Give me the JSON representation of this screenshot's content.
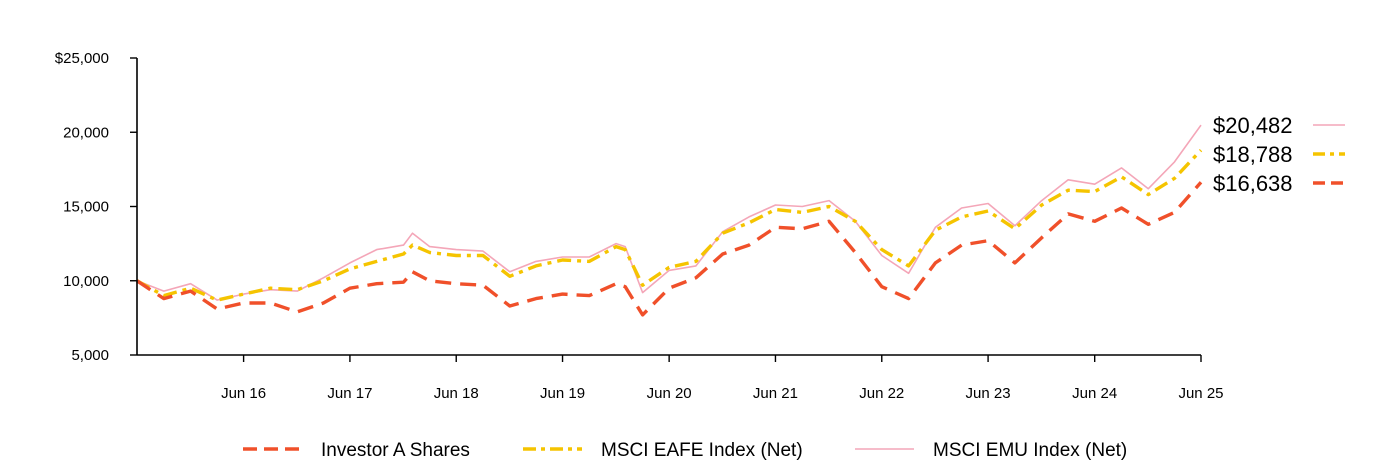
{
  "chart_data": {
    "type": "line",
    "title": "",
    "xlabel": "",
    "ylabel": "",
    "ylim": [
      5000,
      25000
    ],
    "xlim": [
      "2015-06-30",
      "2025-06-30"
    ],
    "grid": false,
    "legend_position": "bottom",
    "y_ticks": [
      {
        "value": 5000,
        "label": "5,000"
      },
      {
        "value": 10000,
        "label": "10,000"
      },
      {
        "value": 15000,
        "label": "15,000"
      },
      {
        "value": 20000,
        "label": "20,000"
      },
      {
        "value": 25000,
        "label": "$25,000"
      }
    ],
    "x_ticks": [
      {
        "value": "2016-06-30",
        "label": "Jun 16"
      },
      {
        "value": "2017-06-30",
        "label": "Jun 17"
      },
      {
        "value": "2018-06-30",
        "label": "Jun 18"
      },
      {
        "value": "2019-06-30",
        "label": "Jun 19"
      },
      {
        "value": "2020-06-30",
        "label": "Jun 20"
      },
      {
        "value": "2021-06-30",
        "label": "Jun 21"
      },
      {
        "value": "2022-06-30",
        "label": "Jun 22"
      },
      {
        "value": "2023-06-30",
        "label": "Jun 23"
      },
      {
        "value": "2024-06-30",
        "label": "Jun 24"
      },
      {
        "value": "2025-06-30",
        "label": "Jun 25"
      }
    ],
    "series": [
      {
        "name": "MSCI EMU Index (Net)",
        "color": "#f4a6b8",
        "line_style": "solid",
        "end_label": "$20,482",
        "points": [
          [
            "2015-06-30",
            10000
          ],
          [
            "2015-09-30",
            9300
          ],
          [
            "2015-12-31",
            9800
          ],
          [
            "2016-03-31",
            8700
          ],
          [
            "2016-06-30",
            9100
          ],
          [
            "2016-09-30",
            9400
          ],
          [
            "2016-12-31",
            9300
          ],
          [
            "2017-03-31",
            10200
          ],
          [
            "2017-06-30",
            11200
          ],
          [
            "2017-09-30",
            12100
          ],
          [
            "2017-12-31",
            12400
          ],
          [
            "2018-01-31",
            13200
          ],
          [
            "2018-03-31",
            12300
          ],
          [
            "2018-06-30",
            12100
          ],
          [
            "2018-09-30",
            12000
          ],
          [
            "2018-12-31",
            10600
          ],
          [
            "2019-03-31",
            11300
          ],
          [
            "2019-06-30",
            11600
          ],
          [
            "2019-09-30",
            11600
          ],
          [
            "2019-12-31",
            12500
          ],
          [
            "2020-01-31",
            12300
          ],
          [
            "2020-03-31",
            9200
          ],
          [
            "2020-06-30",
            10700
          ],
          [
            "2020-09-30",
            11000
          ],
          [
            "2020-12-31",
            13300
          ],
          [
            "2021-03-31",
            14300
          ],
          [
            "2021-06-30",
            15100
          ],
          [
            "2021-09-30",
            15000
          ],
          [
            "2021-12-31",
            15400
          ],
          [
            "2022-03-31",
            14000
          ],
          [
            "2022-06-30",
            11700
          ],
          [
            "2022-09-30",
            10500
          ],
          [
            "2022-12-31",
            13600
          ],
          [
            "2023-03-31",
            14900
          ],
          [
            "2023-06-30",
            15200
          ],
          [
            "2023-09-30",
            13700
          ],
          [
            "2023-12-31",
            15400
          ],
          [
            "2024-03-31",
            16800
          ],
          [
            "2024-06-30",
            16500
          ],
          [
            "2024-09-30",
            17600
          ],
          [
            "2024-12-31",
            16200
          ],
          [
            "2025-03-31",
            18000
          ],
          [
            "2025-06-30",
            20482
          ]
        ]
      },
      {
        "name": "MSCI EAFE Index (Net)",
        "color": "#f5c400",
        "line_style": "dash-dot",
        "end_label": "$18,788",
        "points": [
          [
            "2015-06-30",
            10000
          ],
          [
            "2015-09-30",
            9000
          ],
          [
            "2015-12-31",
            9500
          ],
          [
            "2016-03-31",
            8700
          ],
          [
            "2016-06-30",
            9100
          ],
          [
            "2016-09-30",
            9500
          ],
          [
            "2016-12-31",
            9400
          ],
          [
            "2017-03-31",
            10000
          ],
          [
            "2017-06-30",
            10800
          ],
          [
            "2017-09-30",
            11300
          ],
          [
            "2017-12-31",
            11800
          ],
          [
            "2018-01-31",
            12400
          ],
          [
            "2018-03-31",
            11900
          ],
          [
            "2018-06-30",
            11700
          ],
          [
            "2018-09-30",
            11700
          ],
          [
            "2018-12-31",
            10300
          ],
          [
            "2019-03-31",
            11000
          ],
          [
            "2019-06-30",
            11400
          ],
          [
            "2019-09-30",
            11300
          ],
          [
            "2019-12-31",
            12300
          ],
          [
            "2020-01-31",
            12100
          ],
          [
            "2020-03-31",
            9700
          ],
          [
            "2020-06-30",
            10900
          ],
          [
            "2020-09-30",
            11300
          ],
          [
            "2020-12-31",
            13200
          ],
          [
            "2021-03-31",
            13900
          ],
          [
            "2021-06-30",
            14800
          ],
          [
            "2021-09-30",
            14600
          ],
          [
            "2021-12-31",
            15000
          ],
          [
            "2022-03-31",
            14000
          ],
          [
            "2022-06-30",
            12100
          ],
          [
            "2022-09-30",
            11000
          ],
          [
            "2022-12-31",
            13400
          ],
          [
            "2023-03-31",
            14300
          ],
          [
            "2023-06-30",
            14700
          ],
          [
            "2023-09-30",
            13500
          ],
          [
            "2023-12-31",
            15100
          ],
          [
            "2024-03-31",
            16100
          ],
          [
            "2024-06-30",
            16000
          ],
          [
            "2024-09-30",
            17000
          ],
          [
            "2024-12-31",
            15800
          ],
          [
            "2025-03-31",
            16900
          ],
          [
            "2025-06-30",
            18788
          ]
        ]
      },
      {
        "name": "Investor A Shares",
        "color": "#f0502a",
        "line_style": "dashed",
        "end_label": "$16,638",
        "points": [
          [
            "2015-06-30",
            10000
          ],
          [
            "2015-09-30",
            8800
          ],
          [
            "2015-12-31",
            9300
          ],
          [
            "2016-03-31",
            8100
          ],
          [
            "2016-06-30",
            8500
          ],
          [
            "2016-09-30",
            8500
          ],
          [
            "2016-12-31",
            7900
          ],
          [
            "2017-03-31",
            8500
          ],
          [
            "2017-06-30",
            9500
          ],
          [
            "2017-09-30",
            9800
          ],
          [
            "2017-12-31",
            9900
          ],
          [
            "2018-01-31",
            10600
          ],
          [
            "2018-03-31",
            10000
          ],
          [
            "2018-06-30",
            9800
          ],
          [
            "2018-09-30",
            9700
          ],
          [
            "2018-12-31",
            8300
          ],
          [
            "2019-03-31",
            8800
          ],
          [
            "2019-06-30",
            9100
          ],
          [
            "2019-09-30",
            9000
          ],
          [
            "2019-12-31",
            9800
          ],
          [
            "2020-01-31",
            9600
          ],
          [
            "2020-03-31",
            7700
          ],
          [
            "2020-06-30",
            9500
          ],
          [
            "2020-09-30",
            10200
          ],
          [
            "2020-12-31",
            11800
          ],
          [
            "2021-03-31",
            12400
          ],
          [
            "2021-06-30",
            13600
          ],
          [
            "2021-09-30",
            13500
          ],
          [
            "2021-12-31",
            14000
          ],
          [
            "2022-03-31",
            11900
          ],
          [
            "2022-06-30",
            9600
          ],
          [
            "2022-09-30",
            8800
          ],
          [
            "2022-12-31",
            11200
          ],
          [
            "2023-03-31",
            12400
          ],
          [
            "2023-06-30",
            12700
          ],
          [
            "2023-09-30",
            11200
          ],
          [
            "2023-12-31",
            12900
          ],
          [
            "2024-03-31",
            14500
          ],
          [
            "2024-06-30",
            14000
          ],
          [
            "2024-09-30",
            14900
          ],
          [
            "2024-12-31",
            13800
          ],
          [
            "2025-03-31",
            14600
          ],
          [
            "2025-06-30",
            16638
          ]
        ]
      }
    ],
    "legend": [
      {
        "label": "Investor A Shares",
        "color": "#f0502a",
        "line_style": "dashed"
      },
      {
        "label": "MSCI EAFE Index (Net)",
        "color": "#f5c400",
        "line_style": "dash-dot"
      },
      {
        "label": "MSCI EMU Index (Net)",
        "color": "#f4a6b8",
        "line_style": "solid"
      }
    ]
  }
}
